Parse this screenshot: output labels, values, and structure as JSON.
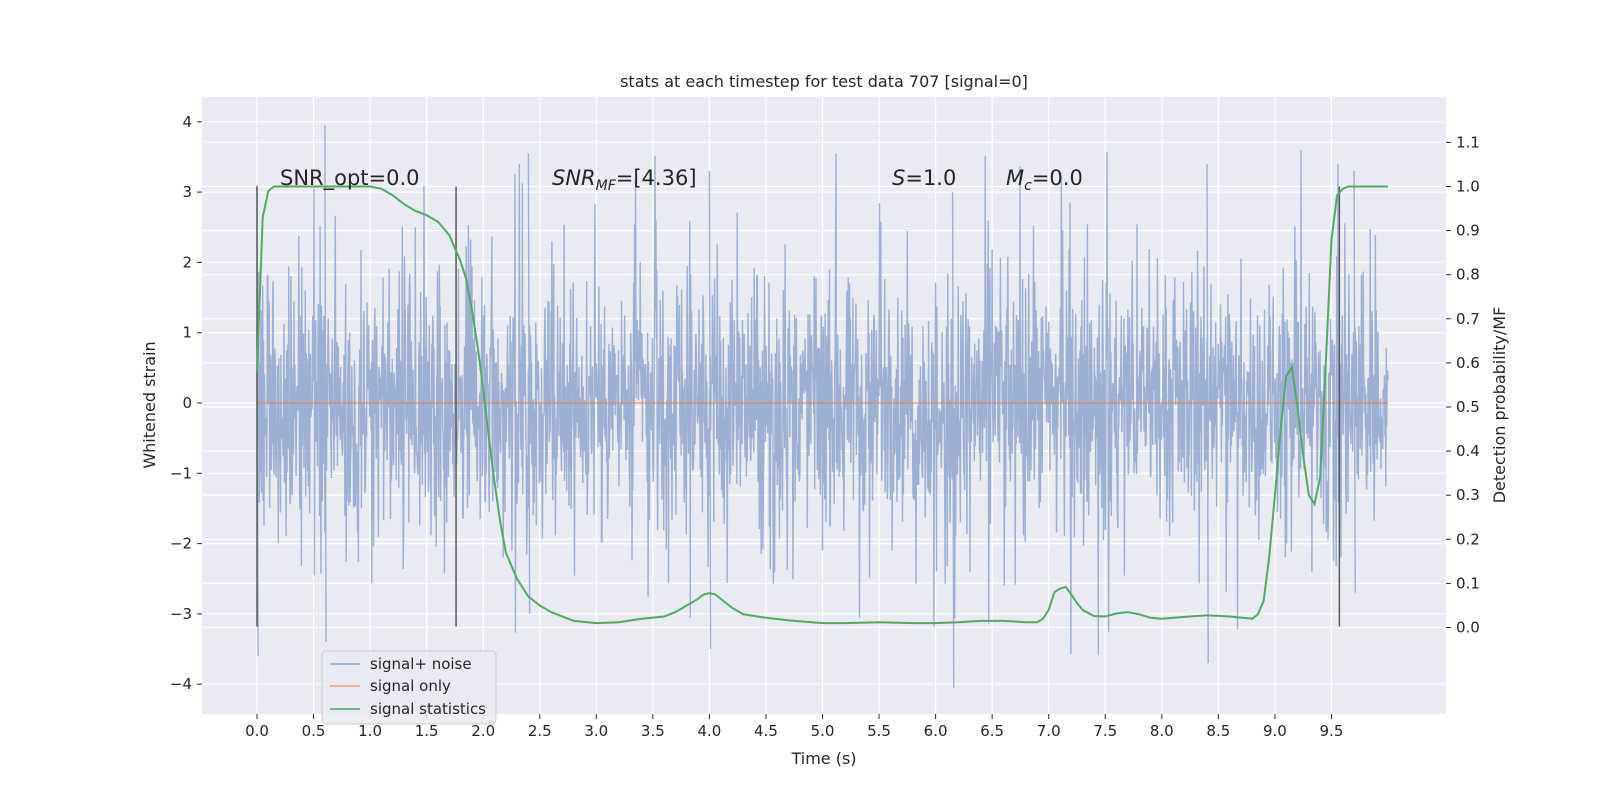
{
  "chart_data": {
    "type": "line",
    "title": "stats at each timestep for test data 707 [signal=0]",
    "xlabel": "Time (s)",
    "ylabel": "Whitened strain",
    "y2label": "Detection probability/MF",
    "xlim": [
      -0.5,
      10.45
    ],
    "ylim": [
      -4.4,
      4.35
    ],
    "y2lim": [
      -0.2,
      1.2
    ],
    "xticks": [
      0.0,
      0.5,
      1.0,
      1.5,
      2.0,
      2.5,
      3.0,
      3.5,
      4.0,
      4.5,
      5.0,
      5.5,
      6.0,
      6.5,
      7.0,
      7.5,
      8.0,
      8.5,
      9.0,
      9.5
    ],
    "xtick_labels": [
      "0.0",
      "0.5",
      "1.0",
      "1.5",
      "2.0",
      "2.5",
      "3.0",
      "3.5",
      "4.0",
      "4.5",
      "5.0",
      "5.5",
      "6.0",
      "6.5",
      "7.0",
      "7.5",
      "8.0",
      "8.5",
      "9.0",
      "9.5"
    ],
    "yticks": [
      -4,
      -3,
      -2,
      -1,
      0,
      1,
      2,
      3,
      4
    ],
    "ytick_labels": [
      "−4",
      "−3",
      "−2",
      "−1",
      "0",
      "1",
      "2",
      "3",
      "4"
    ],
    "y2ticks": [
      0.0,
      0.1,
      0.2,
      0.3,
      0.4,
      0.5,
      0.6,
      0.7,
      0.8,
      0.9,
      1.0,
      1.1
    ],
    "y2tick_labels": [
      "0.0",
      "0.1",
      "0.2",
      "0.3",
      "0.4",
      "0.5",
      "0.6",
      "0.7",
      "0.8",
      "0.9",
      "1.0",
      "1.1"
    ],
    "grid": true,
    "legend_placement": "lower-left",
    "colors": {
      "background": "#eaeaf2",
      "grid": "#ffffff",
      "noise": "#8fa4cc",
      "signal": "#dd8452",
      "stats": "#55a868",
      "vline": "#5a5a5a"
    },
    "series": [
      {
        "name": "signal+ noise",
        "style": "dense noise trace, approx. ±1.3 core band with spikes reaching about ±3.9",
        "x_range": [
          0.0,
          10.0
        ],
        "envelope": [
          {
            "x": 0.0,
            "min": -3.6,
            "max": 3.1
          },
          {
            "x": 0.6,
            "min": -3.4,
            "max": 3.95
          },
          {
            "x": 2.4,
            "min": -3.0,
            "max": 3.55
          },
          {
            "x": 4.0,
            "min": -3.5,
            "max": 3.3
          },
          {
            "x": 6.15,
            "min": -4.05,
            "max": 3.0
          },
          {
            "x": 8.4,
            "min": -3.7,
            "max": 3.4
          },
          {
            "x": 9.7,
            "min": -2.7,
            "max": 3.3
          }
        ]
      },
      {
        "name": "signal only",
        "x": [
          0.0,
          10.0
        ],
        "y": [
          0.0,
          0.0
        ]
      },
      {
        "name": "signal statistics",
        "axis": "right",
        "x": [
          0.0,
          0.05,
          0.1,
          0.15,
          0.2,
          0.3,
          0.5,
          0.8,
          1.0,
          1.1,
          1.2,
          1.3,
          1.4,
          1.5,
          1.6,
          1.7,
          1.8,
          1.85,
          1.9,
          1.95,
          2.0,
          2.05,
          2.1,
          2.15,
          2.2,
          2.3,
          2.4,
          2.5,
          2.6,
          2.8,
          3.0,
          3.2,
          3.4,
          3.6,
          3.7,
          3.8,
          3.9,
          3.95,
          4.0,
          4.05,
          4.1,
          4.2,
          4.3,
          4.5,
          4.7,
          5.0,
          5.2,
          5.5,
          5.8,
          6.0,
          6.2,
          6.4,
          6.6,
          6.8,
          6.9,
          6.95,
          7.0,
          7.05,
          7.1,
          7.15,
          7.2,
          7.25,
          7.3,
          7.4,
          7.5,
          7.6,
          7.7,
          7.8,
          7.9,
          8.0,
          8.2,
          8.4,
          8.6,
          8.8,
          8.85,
          8.9,
          8.95,
          9.0,
          9.05,
          9.1,
          9.15,
          9.2,
          9.25,
          9.3,
          9.35,
          9.4,
          9.45,
          9.5,
          9.55,
          9.6,
          9.65,
          9.7,
          9.8,
          9.9,
          10.0
        ],
        "y": [
          0.58,
          0.93,
          0.99,
          1.0,
          1.0,
          1.0,
          1.0,
          1.0,
          1.0,
          0.995,
          0.98,
          0.96,
          0.945,
          0.935,
          0.92,
          0.89,
          0.83,
          0.79,
          0.72,
          0.64,
          0.54,
          0.43,
          0.33,
          0.24,
          0.17,
          0.11,
          0.07,
          0.05,
          0.035,
          0.015,
          0.01,
          0.012,
          0.02,
          0.025,
          0.035,
          0.05,
          0.065,
          0.075,
          0.078,
          0.075,
          0.065,
          0.045,
          0.03,
          0.022,
          0.016,
          0.01,
          0.01,
          0.012,
          0.01,
          0.01,
          0.012,
          0.015,
          0.015,
          0.012,
          0.012,
          0.02,
          0.04,
          0.08,
          0.088,
          0.092,
          0.075,
          0.055,
          0.04,
          0.026,
          0.025,
          0.032,
          0.035,
          0.03,
          0.022,
          0.02,
          0.024,
          0.028,
          0.025,
          0.02,
          0.03,
          0.06,
          0.16,
          0.3,
          0.45,
          0.57,
          0.59,
          0.5,
          0.39,
          0.3,
          0.28,
          0.34,
          0.6,
          0.88,
          0.98,
          0.995,
          1.0,
          1.0,
          1.0,
          1.0,
          1.0
        ]
      }
    ],
    "vertical_lines": [
      {
        "x": 0.0,
        "ymin": -3.18,
        "ymax": 3.08
      },
      {
        "x": 1.76,
        "ymin": -3.18,
        "ymax": 3.08
      },
      {
        "x": 9.57,
        "ymin": -3.18,
        "ymax": 3.08
      }
    ],
    "annotations": [
      {
        "text": "SNR_opt=0.0",
        "x": 0.2,
        "y": 3.15
      },
      {
        "text": "SNR",
        "sub": "MF",
        "text_after": "=[4.36]",
        "italic": true,
        "x": 2.6,
        "y": 3.15
      },
      {
        "text": "S",
        "text_after": "=1.0",
        "italic": true,
        "x": 5.6,
        "y": 3.15
      },
      {
        "text": "M",
        "sub": "c",
        "text_after": "=0.0",
        "italic": true,
        "x": 6.6,
        "y": 3.15
      }
    ]
  },
  "legend": {
    "items": [
      {
        "label": "signal+ noise",
        "color": "#8fa4cc"
      },
      {
        "label": "signal only",
        "color": "#dd8452"
      },
      {
        "label": "signal statistics",
        "color": "#55a868"
      }
    ]
  }
}
